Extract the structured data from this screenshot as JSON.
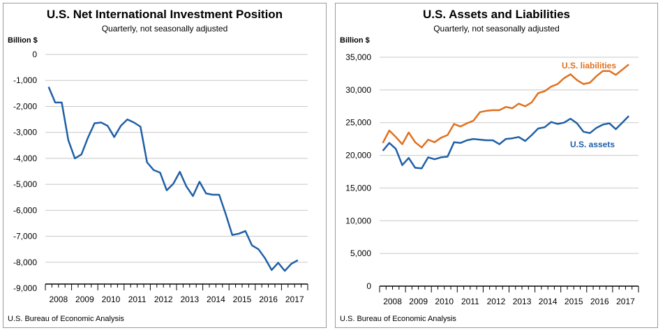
{
  "left_panel": {
    "title": "U.S. Net International Investment Position",
    "subtitle": "Quarterly, not seasonally adjusted",
    "ylabel": "Billion $",
    "source": "U.S. Bureau of Economic Analysis"
  },
  "right_panel": {
    "title": "U.S. Assets and Liabilities",
    "subtitle": "Quarterly, not seasonally adjusted",
    "ylabel": "Billion $",
    "source": "U.S. Bureau of Economic Analysis"
  },
  "chart_data": [
    {
      "type": "line",
      "title": "U.S. Net International Investment Position",
      "subtitle": "Quarterly, not seasonally adjusted",
      "ylabel": "Billion $",
      "xlabel": "",
      "ylim": [
        -9000,
        0
      ],
      "yticks": [
        0,
        -1000,
        -2000,
        -3000,
        -4000,
        -5000,
        -6000,
        -7000,
        -8000,
        -9000
      ],
      "ytick_labels": [
        "0",
        "-1,000",
        "-2,000",
        "-3,000",
        "-4,000",
        "-5,000",
        "-6,000",
        "-7,000",
        "-8,000",
        "-9,000"
      ],
      "years": [
        "2008",
        "2009",
        "2010",
        "2011",
        "2012",
        "2013",
        "2014",
        "2015",
        "2016",
        "2017"
      ],
      "grid": "horizontal",
      "series": [
        {
          "color": "#1f5fa6",
          "values": [
            -1250,
            -1850,
            -1850,
            -3300,
            -4000,
            -3850,
            -3200,
            -2650,
            -2620,
            -2750,
            -3180,
            -2750,
            -2500,
            -2620,
            -2780,
            -4150,
            -4450,
            -4550,
            -5230,
            -4980,
            -4520,
            -5080,
            -5450,
            -4900,
            -5350,
            -5400,
            -5400,
            -6150,
            -6950,
            -6900,
            -6800,
            -7350,
            -7500,
            -7850,
            -8300,
            -8020,
            -8330,
            -8060,
            -7920
          ]
        }
      ]
    },
    {
      "type": "line",
      "title": "U.S. Assets and Liabilities",
      "subtitle": "Quarterly, not seasonally adjusted",
      "ylabel": "Billion $",
      "xlabel": "",
      "ylim": [
        0,
        35000
      ],
      "yticks": [
        0,
        5000,
        10000,
        15000,
        20000,
        25000,
        30000,
        35000
      ],
      "ytick_labels": [
        "0",
        "5,000",
        "10,000",
        "15,000",
        "20,000",
        "25,000",
        "30,000",
        "35,000"
      ],
      "years": [
        "2008",
        "2009",
        "2010",
        "2011",
        "2012",
        "2013",
        "2014",
        "2015",
        "2016",
        "2017"
      ],
      "grid": "horizontal",
      "series": [
        {
          "name": "U.S. liabilities",
          "color": "#e07020",
          "values": [
            21900,
            23800,
            22800,
            21700,
            23500,
            22000,
            21200,
            22400,
            22000,
            22700,
            23100,
            24800,
            24400,
            24900,
            25300,
            26600,
            26800,
            26900,
            26900,
            27400,
            27200,
            27900,
            27500,
            28100,
            29500,
            29800,
            30500,
            30900,
            31800,
            32400,
            31500,
            30900,
            31100,
            32100,
            32900,
            32900,
            32300,
            33100,
            33900
          ]
        },
        {
          "name": "U.S. assets",
          "color": "#1f5fa6",
          "values": [
            20700,
            21900,
            21000,
            18500,
            19600,
            18100,
            18000,
            19700,
            19400,
            19700,
            19800,
            22000,
            21900,
            22300,
            22500,
            22400,
            22300,
            22300,
            21700,
            22500,
            22600,
            22800,
            22200,
            23100,
            24100,
            24300,
            25100,
            24800,
            25000,
            25600,
            24900,
            23600,
            23400,
            24200,
            24700,
            24900,
            24000,
            25000,
            26000
          ]
        }
      ]
    }
  ]
}
